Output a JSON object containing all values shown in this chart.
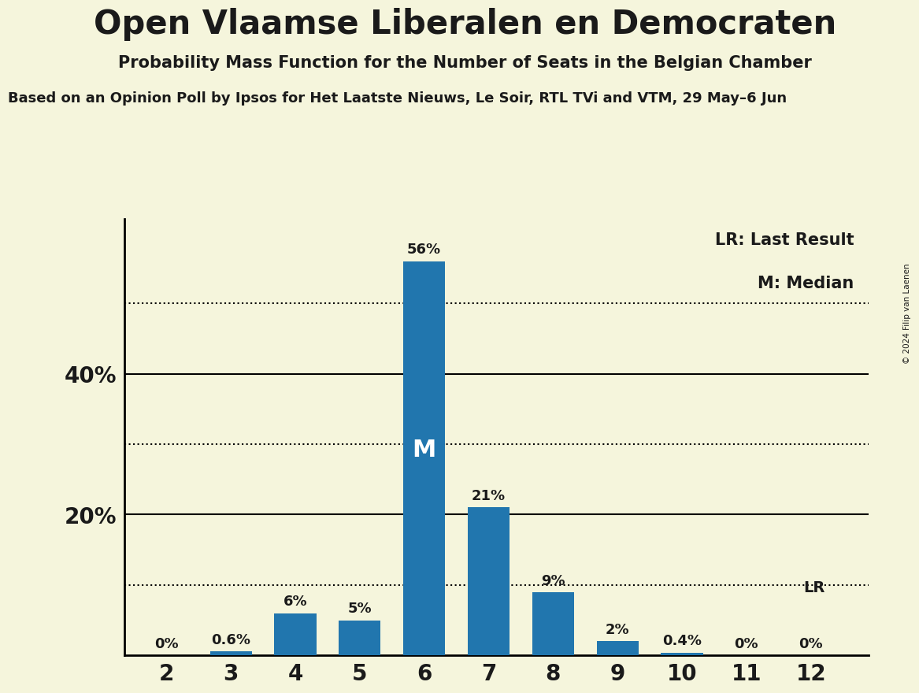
{
  "title": "Open Vlaamse Liberalen en Democraten",
  "subtitle": "Probability Mass Function for the Number of Seats in the Belgian Chamber",
  "source_line": "Based on an Opinion Poll by Ipsos for Het Laatste Nieuws, Le Soir, RTL TVi and VTM, 29 May–6 Jun",
  "copyright": "© 2024 Filip van Laenen",
  "seats": [
    2,
    3,
    4,
    5,
    6,
    7,
    8,
    9,
    10,
    11,
    12
  ],
  "probabilities": [
    0.0,
    0.6,
    6.0,
    5.0,
    56.0,
    21.0,
    9.0,
    2.0,
    0.4,
    0.0,
    0.0
  ],
  "bar_labels": [
    "0%",
    "0.6%",
    "6%",
    "5%",
    "56%",
    "21%",
    "9%",
    "2%",
    "0.4%",
    "0%",
    "0%"
  ],
  "median_seat": 6,
  "lr_seat": 12,
  "bar_color": "#2176ae",
  "background_color": "#f5f5dc",
  "text_color": "#1a1a1a",
  "legend_lr": "LR: Last Result",
  "legend_m": "M: Median",
  "ytick_labels": [
    "",
    "20%",
    "",
    "40%",
    ""
  ],
  "ytick_values": [
    10,
    20,
    30,
    40,
    50
  ],
  "ylim": [
    0,
    62
  ],
  "dotted_lines": [
    10,
    30,
    50
  ],
  "solid_lines": [
    20,
    40
  ]
}
